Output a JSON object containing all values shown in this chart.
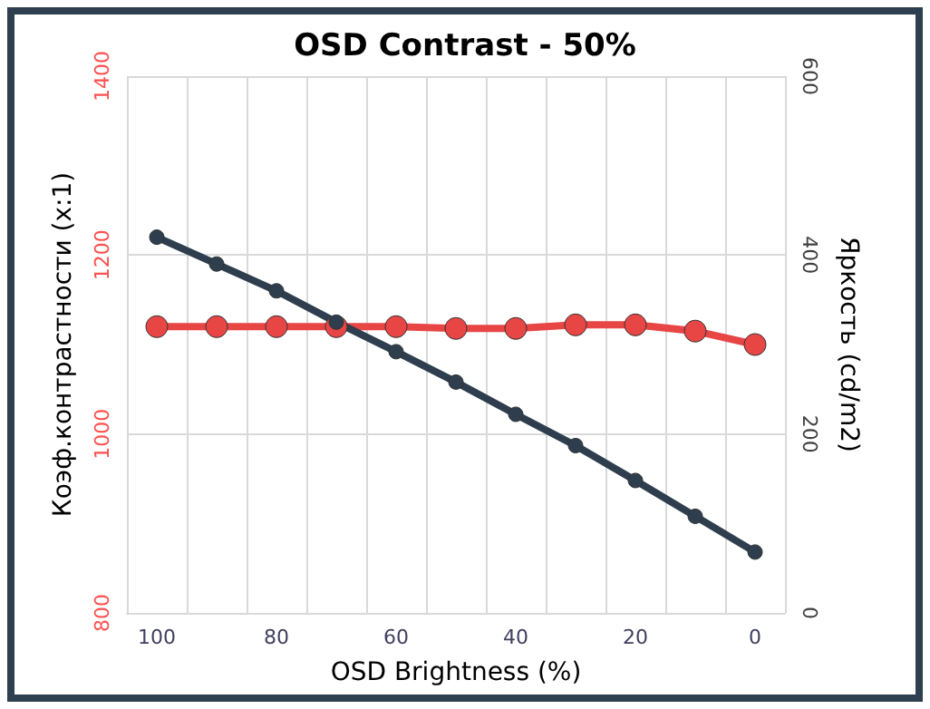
{
  "chart_data": {
    "type": "line",
    "title": "OSD Contrast - 50%",
    "xlabel": "OSD Brightness (%)",
    "ylabel": "Коэф.контрастности (x:1)",
    "y2label": "Яркость (cd/m2)",
    "categories": [
      "100",
      null,
      "80",
      null,
      "60",
      null,
      "40",
      null,
      "20",
      null,
      "0"
    ],
    "series": [
      {
        "color": "#e84545",
        "values": [
          1120,
          1120,
          1120,
          1120,
          1120,
          1118,
          1118,
          1122,
          1122,
          1115,
          1100
        ]
      },
      {
        "color": "#2e3e4e",
        "axis": "y2",
        "values": [
          420,
          390,
          360,
          325,
          292,
          258,
          222,
          187,
          148,
          108,
          68
        ]
      }
    ],
    "ylim": [
      800,
      1400
    ],
    "yticks": [
      800,
      1000,
      1200,
      1400
    ],
    "y2lim": [
      0,
      600
    ],
    "y2ticks": [
      0,
      200,
      400,
      600
    ],
    "grid": true,
    "marker": "circle",
    "line_style": "solid"
  }
}
